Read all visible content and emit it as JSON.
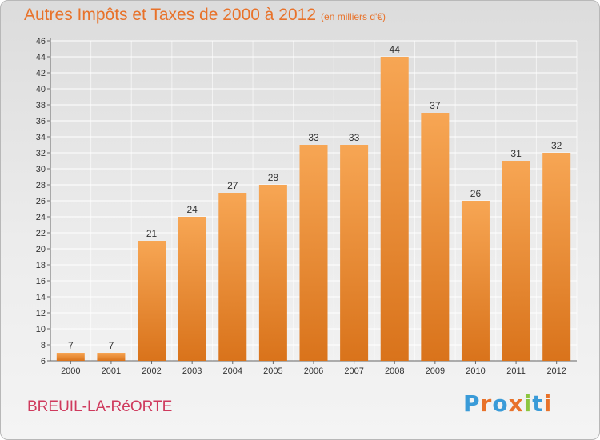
{
  "header": {
    "title": "Autres Impôts et Taxes de 2000 à 2012",
    "subtitle": "(en milliers d'€)"
  },
  "footer": {
    "location": "BREUIL-LA-RéORTE",
    "brand_letters": [
      "P",
      "r",
      "o",
      "x",
      "i",
      "t",
      "i"
    ]
  },
  "colors": {
    "bar_top": "#f7a654",
    "bar_bottom": "#d9731b",
    "title": "#e8722a",
    "location": "#cf3a5d",
    "brand": [
      "#3a9bd8",
      "#e8722a",
      "#3a9bd8",
      "#e8722a",
      "#8cc63f",
      "#3a9bd8",
      "#e8722a"
    ]
  },
  "chart_data": {
    "type": "bar",
    "title": "Autres Impôts et Taxes de 2000 à 2012",
    "subtitle": "(en milliers d'€)",
    "categories": [
      "2000",
      "2001",
      "2002",
      "2003",
      "2004",
      "2005",
      "2006",
      "2007",
      "2008",
      "2009",
      "2010",
      "2011",
      "2012"
    ],
    "values": [
      7,
      7,
      21,
      24,
      27,
      28,
      33,
      33,
      44,
      37,
      26,
      31,
      32
    ],
    "ylim": [
      6,
      46
    ],
    "yticks": [
      6,
      8,
      10,
      12,
      14,
      16,
      18,
      20,
      22,
      24,
      26,
      28,
      30,
      32,
      34,
      36,
      38,
      40,
      42,
      44,
      46
    ],
    "grid": true,
    "xlabel": "",
    "ylabel": ""
  }
}
